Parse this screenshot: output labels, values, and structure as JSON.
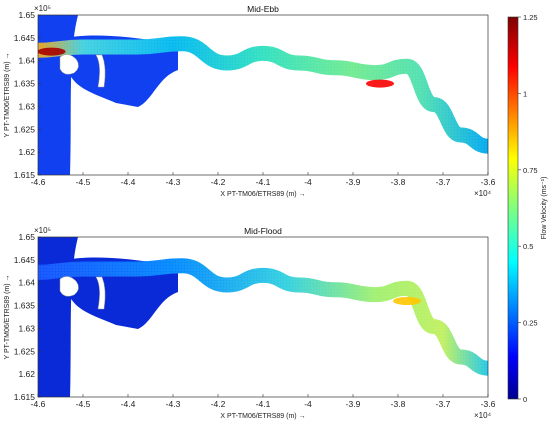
{
  "chart_data": [
    {
      "type": "heatmap",
      "title": "Mid-Ebb",
      "xlabel": "X PT-TM06/ETRS89 (m) →",
      "ylabel": "Y PT-TM06/ETRS89 (m) →",
      "x_exponent": "×10⁴",
      "y_exponent": "×10⁵",
      "xlim": [
        -46000,
        -36000
      ],
      "ylim": [
        161500,
        165000
      ],
      "x_ticks": [
        "-4.6",
        "-4.5",
        "-4.4",
        "-4.3",
        "-4.2",
        "-4.1",
        "-4",
        "-3.9",
        "-3.8",
        "-3.7",
        "-3.6"
      ],
      "y_ticks": [
        "1.65",
        "1.645",
        "1.64",
        "1.635",
        "1.63",
        "1.625",
        "1.62",
        "1.615"
      ],
      "hotspots": [
        {
          "x": -45700,
          "y": 164200,
          "velocity": 1.2
        },
        {
          "x": -38400,
          "y": 163500,
          "velocity": 1.1
        }
      ]
    },
    {
      "type": "heatmap",
      "title": "Mid-Flood",
      "xlabel": "X PT-TM06/ETRS89 (m) →",
      "ylabel": "Y PT-TM06/ETRS89 (m) →",
      "x_exponent": "×10⁴",
      "y_exponent": "×10⁵",
      "xlim": [
        -46000,
        -36000
      ],
      "ylim": [
        161500,
        165000
      ],
      "x_ticks": [
        "-4.6",
        "-4.5",
        "-4.4",
        "-4.3",
        "-4.2",
        "-4.1",
        "-4",
        "-3.9",
        "-3.8",
        "-3.7",
        "-3.6"
      ],
      "y_ticks": [
        "1.65",
        "1.645",
        "1.64",
        "1.635",
        "1.63",
        "1.625",
        "1.62",
        "1.615"
      ],
      "hotspots": [
        {
          "x": -37800,
          "y": 163600,
          "velocity": 0.85
        }
      ]
    }
  ],
  "colorbar": {
    "label": "Flow Velocity (ms⁻¹)",
    "range": [
      0,
      1.25
    ],
    "ticks": [
      "0",
      "0.25",
      "0.5",
      "0.75",
      "1",
      "1.25"
    ],
    "colormap": "jet"
  }
}
